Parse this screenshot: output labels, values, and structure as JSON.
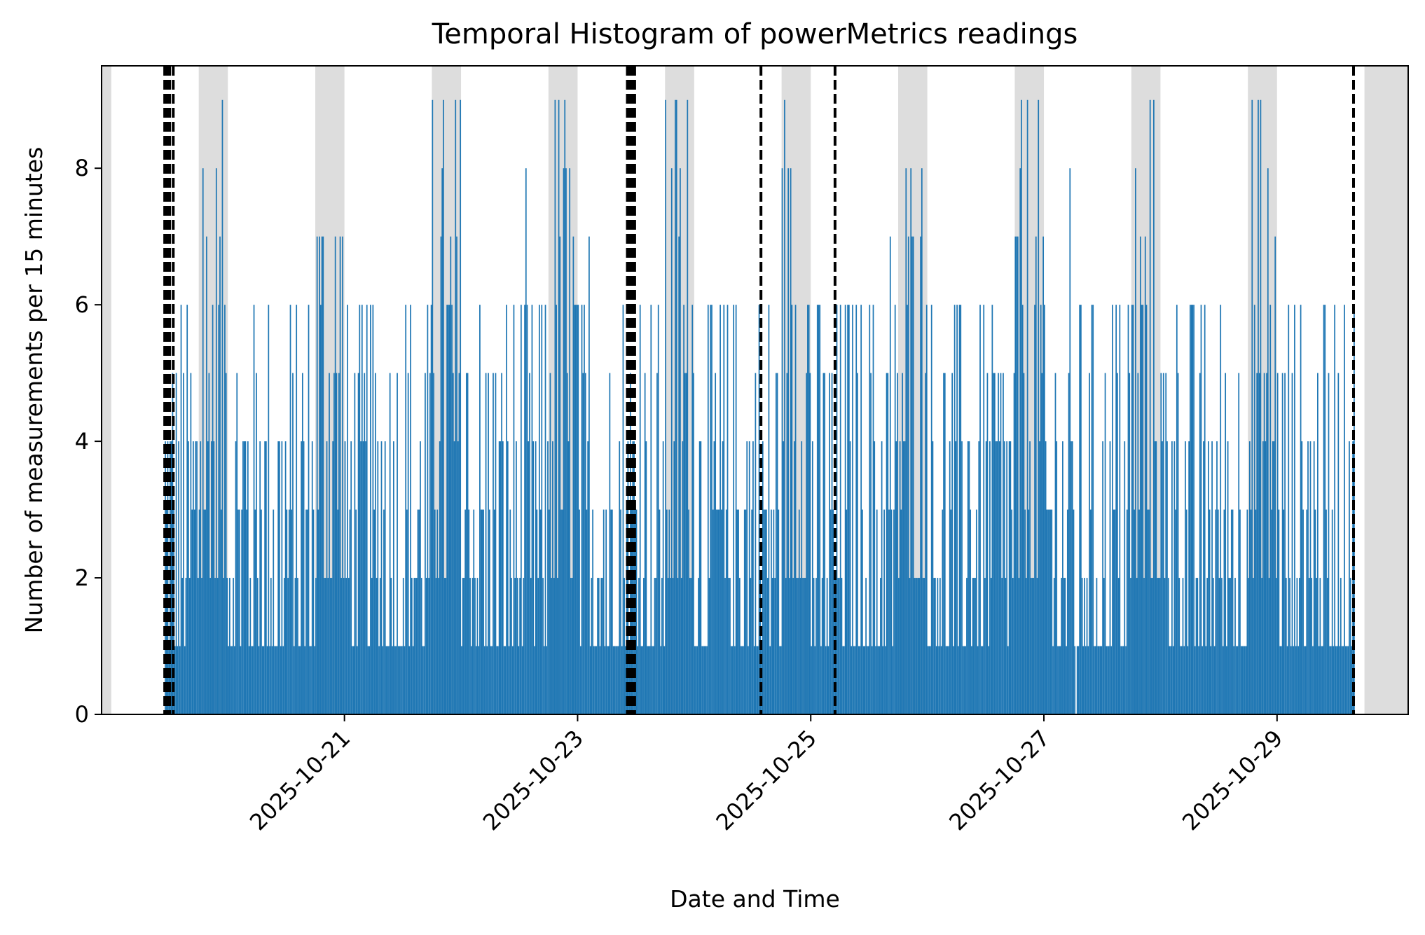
{
  "chart_data": {
    "type": "bar",
    "title": "Temporal Histogram of powerMetrics readings",
    "xlabel": "Date and Time",
    "ylabel": "Number of measurements per 15 minutes",
    "bin_minutes": 15,
    "x_axis": {
      "type": "date",
      "range": [
        "2025-10-18T22:00",
        "2025-10-30T03:00"
      ],
      "ticks": [
        "2025-10-21",
        "2025-10-23",
        "2025-10-25",
        "2025-10-27",
        "2025-10-29"
      ],
      "tick_rotation_deg": 45
    },
    "y_axis": {
      "range": [
        0,
        9.5
      ],
      "ticks": [
        0,
        2,
        4,
        6,
        8
      ]
    },
    "series_color": "#1f77b4",
    "shade_color": "#dddddd",
    "marker_color": "#000000",
    "grid": false,
    "legend": "none",
    "data_range": [
      "2025-10-19T11:00",
      "2025-10-29T16:00"
    ],
    "shaded_periods": [
      [
        "2025-10-18T22:00",
        "2025-10-19T00:00"
      ],
      [
        "2025-10-19T18:00",
        "2025-10-20T00:00"
      ],
      [
        "2025-10-20T18:00",
        "2025-10-21T00:00"
      ],
      [
        "2025-10-21T18:00",
        "2025-10-22T00:00"
      ],
      [
        "2025-10-22T18:00",
        "2025-10-23T00:00"
      ],
      [
        "2025-10-23T18:00",
        "2025-10-24T00:00"
      ],
      [
        "2025-10-24T18:00",
        "2025-10-25T00:00"
      ],
      [
        "2025-10-25T18:00",
        "2025-10-26T00:00"
      ],
      [
        "2025-10-26T18:00",
        "2025-10-27T00:00"
      ],
      [
        "2025-10-27T18:00",
        "2025-10-28T00:00"
      ],
      [
        "2025-10-28T18:00",
        "2025-10-29T00:00"
      ],
      [
        "2025-10-29T18:00",
        "2025-10-30T03:00"
      ]
    ],
    "marker_lines": [
      "2025-10-19T11:00",
      "2025-10-19T11:30",
      "2025-10-19T12:00",
      "2025-10-19T12:45",
      "2025-10-23T10:15",
      "2025-10-23T10:45",
      "2025-10-23T11:15",
      "2025-10-23T11:45",
      "2025-10-24T13:45",
      "2025-10-25T05:00",
      "2025-10-29T15:45"
    ],
    "typical_counts_per_bin": {
      "day_range": [
        1,
        6
      ],
      "night_range": [
        2,
        9
      ],
      "maximum": 9
    },
    "notable_bins": [
      {
        "x": "2025-10-27T06:30",
        "value": 0
      }
    ]
  }
}
